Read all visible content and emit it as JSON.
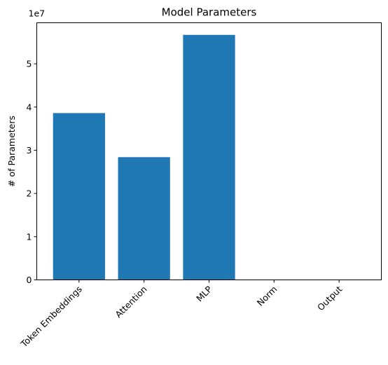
{
  "chart_data": {
    "type": "bar",
    "title": "Model Parameters",
    "xlabel": "",
    "ylabel": "# of Parameters",
    "y_offset_label": "1e7",
    "y_scale": 10000000,
    "categories": [
      "Token Embeddings",
      "Attention",
      "MLP",
      "Norm",
      "Output"
    ],
    "values": [
      38600000,
      28400000,
      56700000,
      0,
      0
    ],
    "ylim": [
      0,
      59500000
    ],
    "yticks": [
      0,
      10000000,
      20000000,
      30000000,
      40000000,
      50000000
    ],
    "ytick_labels": [
      "0",
      "1",
      "2",
      "3",
      "4",
      "5"
    ],
    "xtick_rotation": 45,
    "grid": false,
    "bar_color": "#1f77b4"
  }
}
